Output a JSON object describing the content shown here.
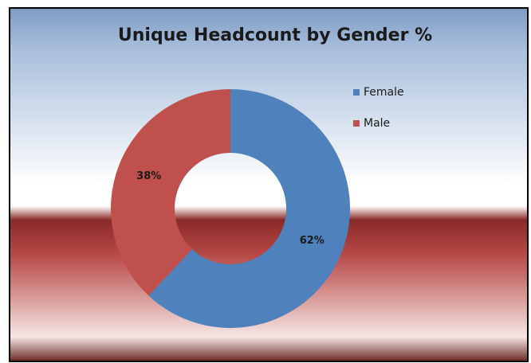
{
  "chart_data": {
    "type": "doughnut",
    "title": "Unique Headcount by Gender %",
    "categories": [
      "Female",
      "Male"
    ],
    "values": [
      62,
      38
    ],
    "value_labels": [
      "62%",
      "38%"
    ],
    "colors": [
      "#4f81bd",
      "#c0504d"
    ],
    "legend": "right"
  }
}
